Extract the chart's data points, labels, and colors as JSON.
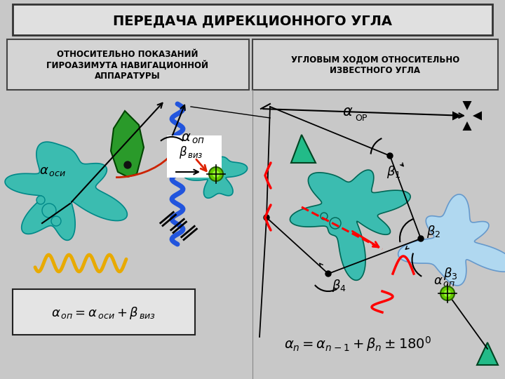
{
  "title": "ПЕРЕДАЧА ДИРЕКЦИОННОГО УГЛА",
  "subtitle_left": "ОТНОСИТЕЛЬНО ПОКАЗАНИЙ\nГИРОАЗИМУТА НАВИГАЦИОННОЙ\nАППАРАТУРЫ",
  "subtitle_right": "УГЛОВЫМ ХОДОМ ОТНОСИТЕЛЬНО\nИЗВЕСТНОГО УГЛА",
  "bg_color": "#c8c8c8",
  "box_color": "#d4d4d4",
  "title_box_color": "#e0e0e0",
  "teal_color": "#3bbcb0",
  "blue_cloud_color": "#b0d8f0",
  "green_color": "#2a9a2a",
  "red_color": "#dd0000",
  "yellow_color": "#e8aa00",
  "blue_line_color": "#2255dd"
}
